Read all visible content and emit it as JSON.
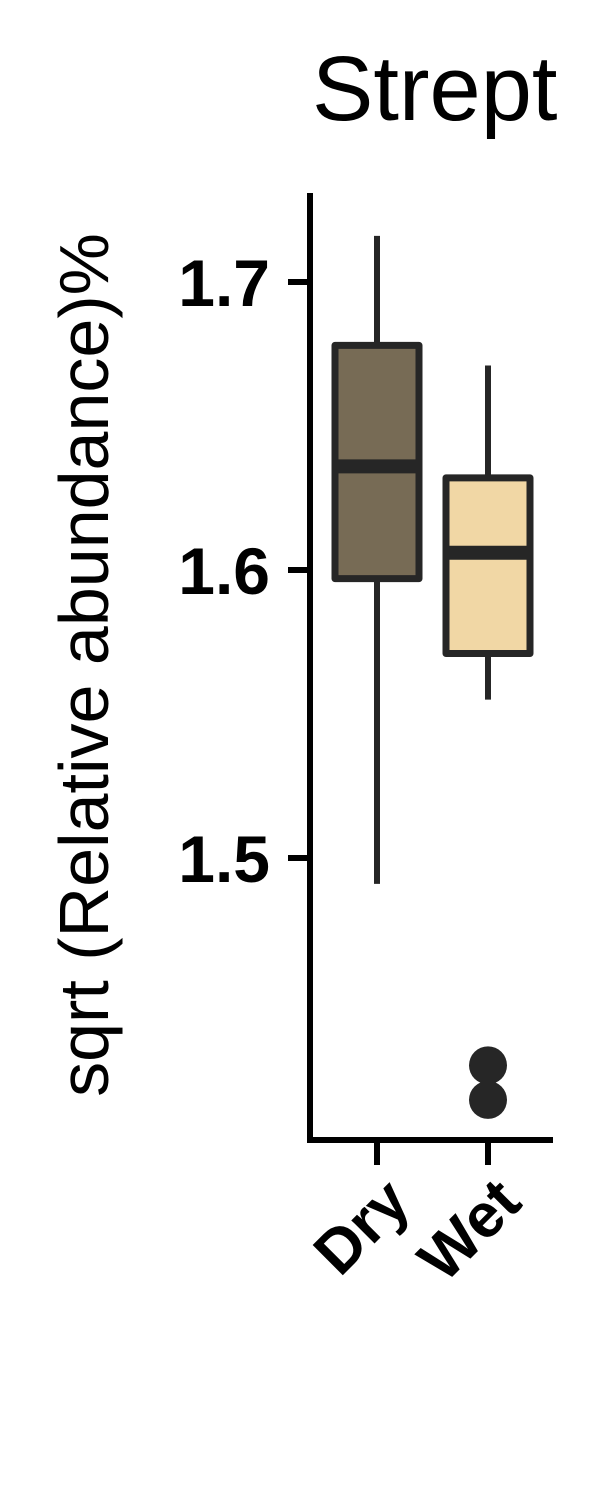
{
  "chart_data": {
    "type": "box",
    "title": "Strept",
    "ylabel": "sqrt (Relative abundance)%",
    "xlabel": "",
    "ylim": [
      1.41,
      1.73
    ],
    "yticks": [
      1.5,
      1.6,
      1.7
    ],
    "ytick_labels": [
      "1.5",
      "1.6",
      "1.7"
    ],
    "categories": [
      "Dry",
      "Wet"
    ],
    "boxes": [
      {
        "category": "Dry",
        "whisker_low": 1.491,
        "q1": 1.597,
        "median": 1.636,
        "q3": 1.678,
        "whisker_high": 1.716,
        "outliers": [],
        "fill": "#776b55"
      },
      {
        "category": "Wet",
        "whisker_low": 1.555,
        "q1": 1.571,
        "median": 1.606,
        "q3": 1.632,
        "whisker_high": 1.671,
        "outliers": [
          1.416,
          1.428
        ],
        "fill": "#f1d7a5"
      }
    ],
    "grid": false,
    "legend": "none",
    "outline_color": "#262626"
  }
}
